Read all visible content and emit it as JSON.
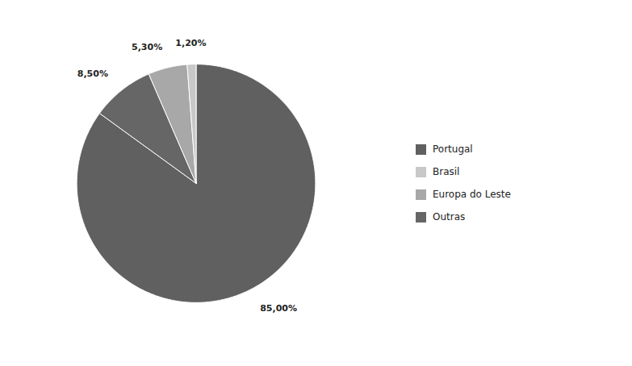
{
  "chart_data": {
    "type": "pie",
    "categories": [
      "Portugal",
      "Outras",
      "Europa do Leste",
      "Brasil"
    ],
    "values": [
      85.0,
      8.5,
      5.3,
      1.2
    ],
    "value_labels": [
      "85,00%",
      "8,50%",
      "5,30%",
      "1,20%"
    ],
    "colors": [
      "#606060",
      "#666666",
      "#a8a8a8",
      "#c8c8c8"
    ],
    "data_labels": true,
    "legend": "right",
    "legend_entries": [
      "Portugal",
      "Brasil",
      "Europa do Leste",
      "Outras"
    ]
  }
}
